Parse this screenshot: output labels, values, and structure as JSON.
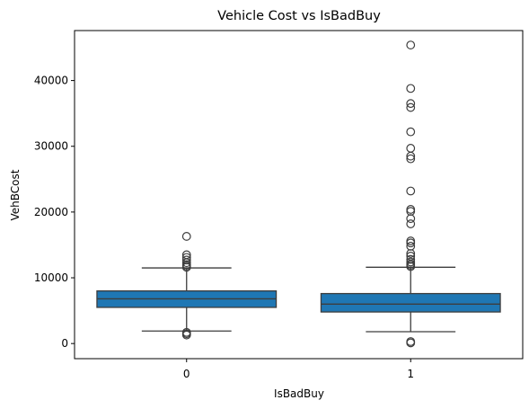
{
  "chart_data": {
    "type": "boxplot",
    "title": "Vehicle Cost vs IsBadBuy",
    "xlabel": "IsBadBuy",
    "ylabel": "VehBCost",
    "categories": [
      "0",
      "1"
    ],
    "y_ticks": [
      0,
      10000,
      20000,
      30000,
      40000
    ],
    "ylim": [
      -2300,
      47600
    ],
    "grid": false,
    "box_color": "#1f77b4",
    "line_color": "#3d3d3d",
    "boxes": [
      {
        "category": "0",
        "whisker_low": 1900,
        "q1": 5500,
        "median": 6800,
        "q3": 8000,
        "whisker_high": 11500,
        "outliers": [
          1300,
          1500,
          1700,
          11600,
          11800,
          12000,
          12300,
          12700,
          13100,
          13500,
          16300
        ]
      },
      {
        "category": "1",
        "whisker_low": 1800,
        "q1": 4800,
        "median": 6000,
        "q3": 7600,
        "whisker_high": 11600,
        "outliers": [
          100,
          300,
          11700,
          11900,
          12100,
          12400,
          12800,
          13300,
          13700,
          14800,
          15300,
          15600,
          18200,
          19000,
          20100,
          20400,
          23200,
          28100,
          28500,
          29700,
          32200,
          35900,
          36500,
          38800,
          45400
        ]
      }
    ]
  }
}
